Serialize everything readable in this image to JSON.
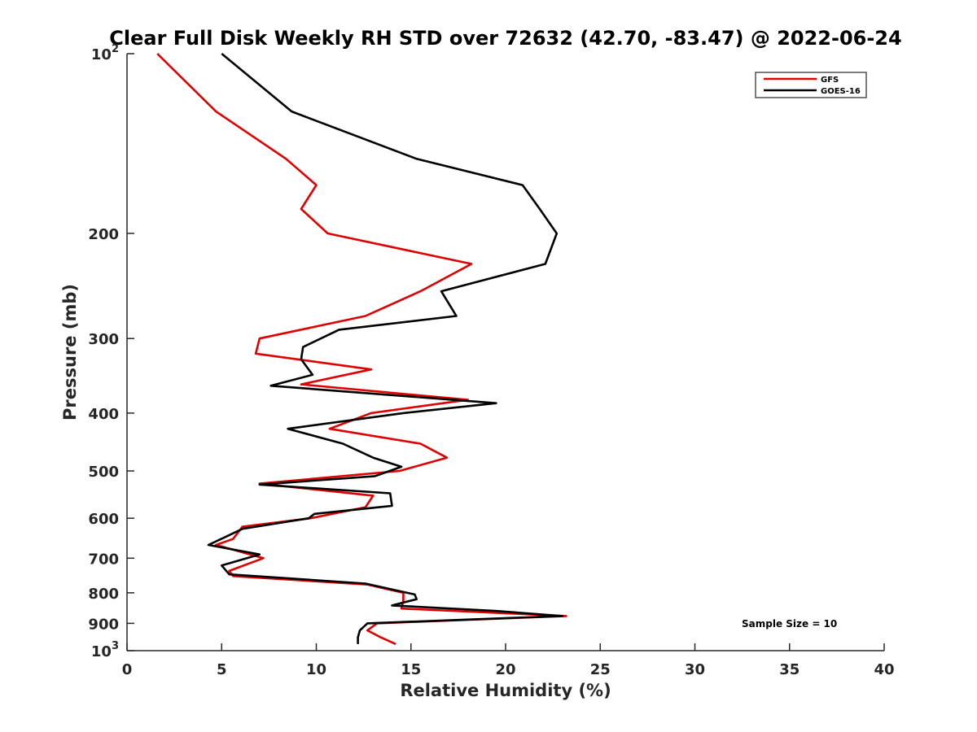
{
  "chart_data": {
    "type": "line",
    "title": "Clear Full Disk Weekly RH STD over 72632 (42.70, -83.47) @ 2022-06-24",
    "xlabel": "Relative Humidity (%)",
    "ylabel": "Pressure (mb)",
    "xlim": [
      0,
      40
    ],
    "ylim": [
      1000,
      100
    ],
    "yscale": "log",
    "y_reversed": true,
    "grid": false,
    "legend_position": "top-right",
    "x_ticks": [
      "0",
      "5",
      "10",
      "15",
      "20",
      "25",
      "30",
      "35",
      "40"
    ],
    "x_tick_values": [
      0,
      5,
      10,
      15,
      20,
      25,
      30,
      35,
      40
    ],
    "y_ticks": [
      {
        "value": 100,
        "base": "10",
        "exp": "2"
      },
      {
        "value": 200,
        "base": "200",
        "exp": ""
      },
      {
        "value": 300,
        "base": "300",
        "exp": ""
      },
      {
        "value": 400,
        "base": "400",
        "exp": ""
      },
      {
        "value": 500,
        "base": "500",
        "exp": ""
      },
      {
        "value": 600,
        "base": "600",
        "exp": ""
      },
      {
        "value": 700,
        "base": "700",
        "exp": ""
      },
      {
        "value": 800,
        "base": "800",
        "exp": ""
      },
      {
        "value": 900,
        "base": "900",
        "exp": ""
      },
      {
        "value": 1000,
        "base": "10",
        "exp": "3"
      }
    ],
    "annotation": "Sample Size = 10",
    "series": [
      {
        "name": "GFS",
        "color": "#e00000",
        "points": [
          [
            1.6,
            100
          ],
          [
            4.7,
            125
          ],
          [
            8.4,
            150
          ],
          [
            10.0,
            166
          ],
          [
            9.2,
            182
          ],
          [
            10.6,
            200
          ],
          [
            18.2,
            225
          ],
          [
            15.5,
            250
          ],
          [
            12.6,
            275
          ],
          [
            7.0,
            300
          ],
          [
            6.8,
            318
          ],
          [
            12.9,
            338
          ],
          [
            9.2,
            358
          ],
          [
            18.0,
            380
          ],
          [
            12.9,
            400
          ],
          [
            10.7,
            425
          ],
          [
            15.5,
            450
          ],
          [
            16.9,
            475
          ],
          [
            14.4,
            500
          ],
          [
            7.0,
            525
          ],
          [
            13.0,
            550
          ],
          [
            12.6,
            575
          ],
          [
            9.7,
            600
          ],
          [
            6.1,
            620
          ],
          [
            5.6,
            650
          ],
          [
            4.7,
            665
          ],
          [
            7.2,
            700
          ],
          [
            5.4,
            735
          ],
          [
            5.6,
            750
          ],
          [
            12.7,
            775
          ],
          [
            14.6,
            800
          ],
          [
            14.6,
            825
          ],
          [
            14.5,
            850
          ],
          [
            23.2,
            875
          ],
          [
            13.2,
            900
          ],
          [
            12.7,
            925
          ],
          [
            13.4,
            950
          ],
          [
            14.2,
            975
          ]
        ]
      },
      {
        "name": "GOES-16",
        "color": "#000000",
        "points": [
          [
            5.0,
            100
          ],
          [
            8.7,
            125
          ],
          [
            15.3,
            150
          ],
          [
            20.9,
            166
          ],
          [
            21.8,
            182
          ],
          [
            22.7,
            200
          ],
          [
            22.1,
            225
          ],
          [
            16.6,
            250
          ],
          [
            17.4,
            275
          ],
          [
            11.2,
            290
          ],
          [
            9.3,
            310
          ],
          [
            9.2,
            325
          ],
          [
            9.8,
            345
          ],
          [
            7.6,
            360
          ],
          [
            19.5,
            385
          ],
          [
            14.6,
            400
          ],
          [
            8.5,
            425
          ],
          [
            11.4,
            450
          ],
          [
            13.0,
            475
          ],
          [
            14.5,
            492
          ],
          [
            13.1,
            510
          ],
          [
            7.0,
            527
          ],
          [
            13.9,
            545
          ],
          [
            14.0,
            572
          ],
          [
            9.9,
            590
          ],
          [
            9.6,
            600
          ],
          [
            6.1,
            625
          ],
          [
            5.2,
            645
          ],
          [
            4.3,
            665
          ],
          [
            7.0,
            690
          ],
          [
            5.0,
            720
          ],
          [
            5.4,
            745
          ],
          [
            12.6,
            772
          ],
          [
            15.2,
            805
          ],
          [
            15.3,
            820
          ],
          [
            14.0,
            840
          ],
          [
            19.5,
            858
          ],
          [
            23.0,
            875
          ],
          [
            12.7,
            900
          ],
          [
            12.3,
            925
          ],
          [
            12.2,
            950
          ],
          [
            12.2,
            975
          ]
        ]
      }
    ]
  }
}
